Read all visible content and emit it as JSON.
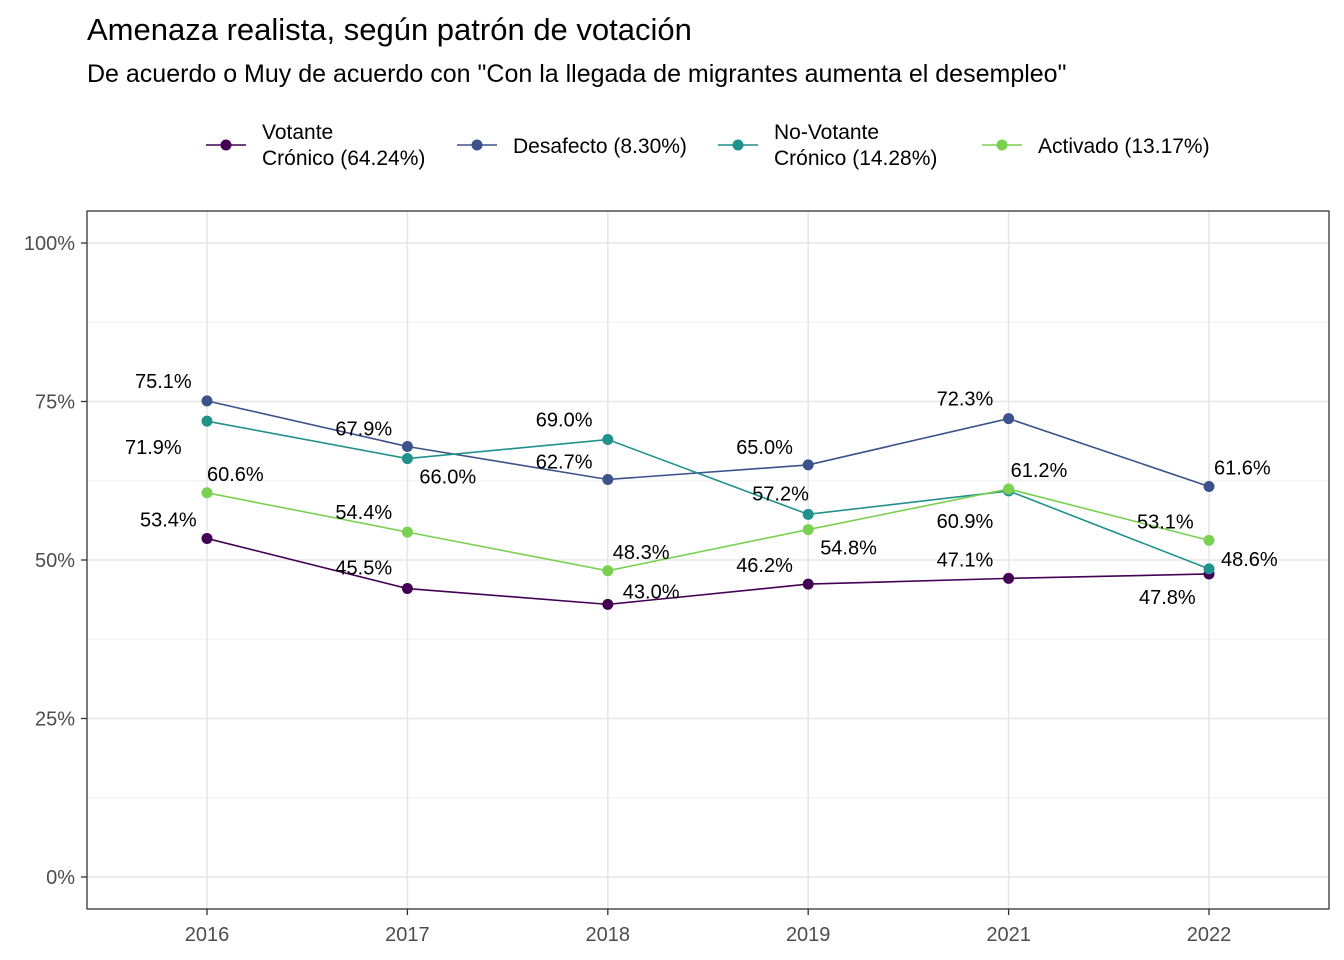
{
  "title": "Amenaza realista, según patrón de votación",
  "subtitle": "De acuerdo o Muy de acuerdo con \"Con la llegada de migrantes aumenta el desempleo\"",
  "chart_data": {
    "type": "line",
    "title": "Amenaza realista, según patrón de votación",
    "subtitle": "De acuerdo o Muy de acuerdo con \"Con la llegada de migrantes aumenta el desempleo\"",
    "xlabel": "",
    "ylabel": "",
    "categories": [
      "2016",
      "2017",
      "2018",
      "2019",
      "2021",
      "2022"
    ],
    "ylim": [
      0,
      100
    ],
    "y_ticks": [
      0,
      25,
      50,
      75,
      100
    ],
    "y_tick_labels": [
      "0%",
      "25%",
      "50%",
      "75%",
      "100%"
    ],
    "grid": true,
    "legend_position": "top",
    "series": [
      {
        "name": "Votante\nCrónico (64.24%)",
        "color": "#440154",
        "values": [
          53.4,
          45.5,
          43.0,
          46.2,
          47.1,
          47.8
        ],
        "labels": [
          "53.4%",
          "45.5%",
          "43.0%",
          "46.2%",
          "47.1%",
          "47.8%"
        ]
      },
      {
        "name": "Desafecto (8.30%)",
        "color": "#3b528b",
        "values": [
          75.1,
          67.9,
          62.7,
          65.0,
          72.3,
          61.6
        ],
        "labels": [
          "75.1%",
          "67.9%",
          "62.7%",
          "65.0%",
          "72.3%",
          "61.6%"
        ]
      },
      {
        "name": "No-Votante\nCrónico (14.28%)",
        "color": "#21918c",
        "values": [
          71.9,
          66.0,
          69.0,
          57.2,
          60.9,
          48.6
        ],
        "labels": [
          "71.9%",
          "66.0%",
          "69.0%",
          "57.2%",
          "60.9%",
          "48.6%"
        ]
      },
      {
        "name": "Activado (13.17%)",
        "color": "#7ad151",
        "values": [
          60.6,
          54.4,
          48.3,
          54.8,
          61.2,
          53.1
        ],
        "labels": [
          "60.6%",
          "54.4%",
          "48.3%",
          "54.8%",
          "61.2%",
          "53.1%"
        ]
      }
    ]
  }
}
